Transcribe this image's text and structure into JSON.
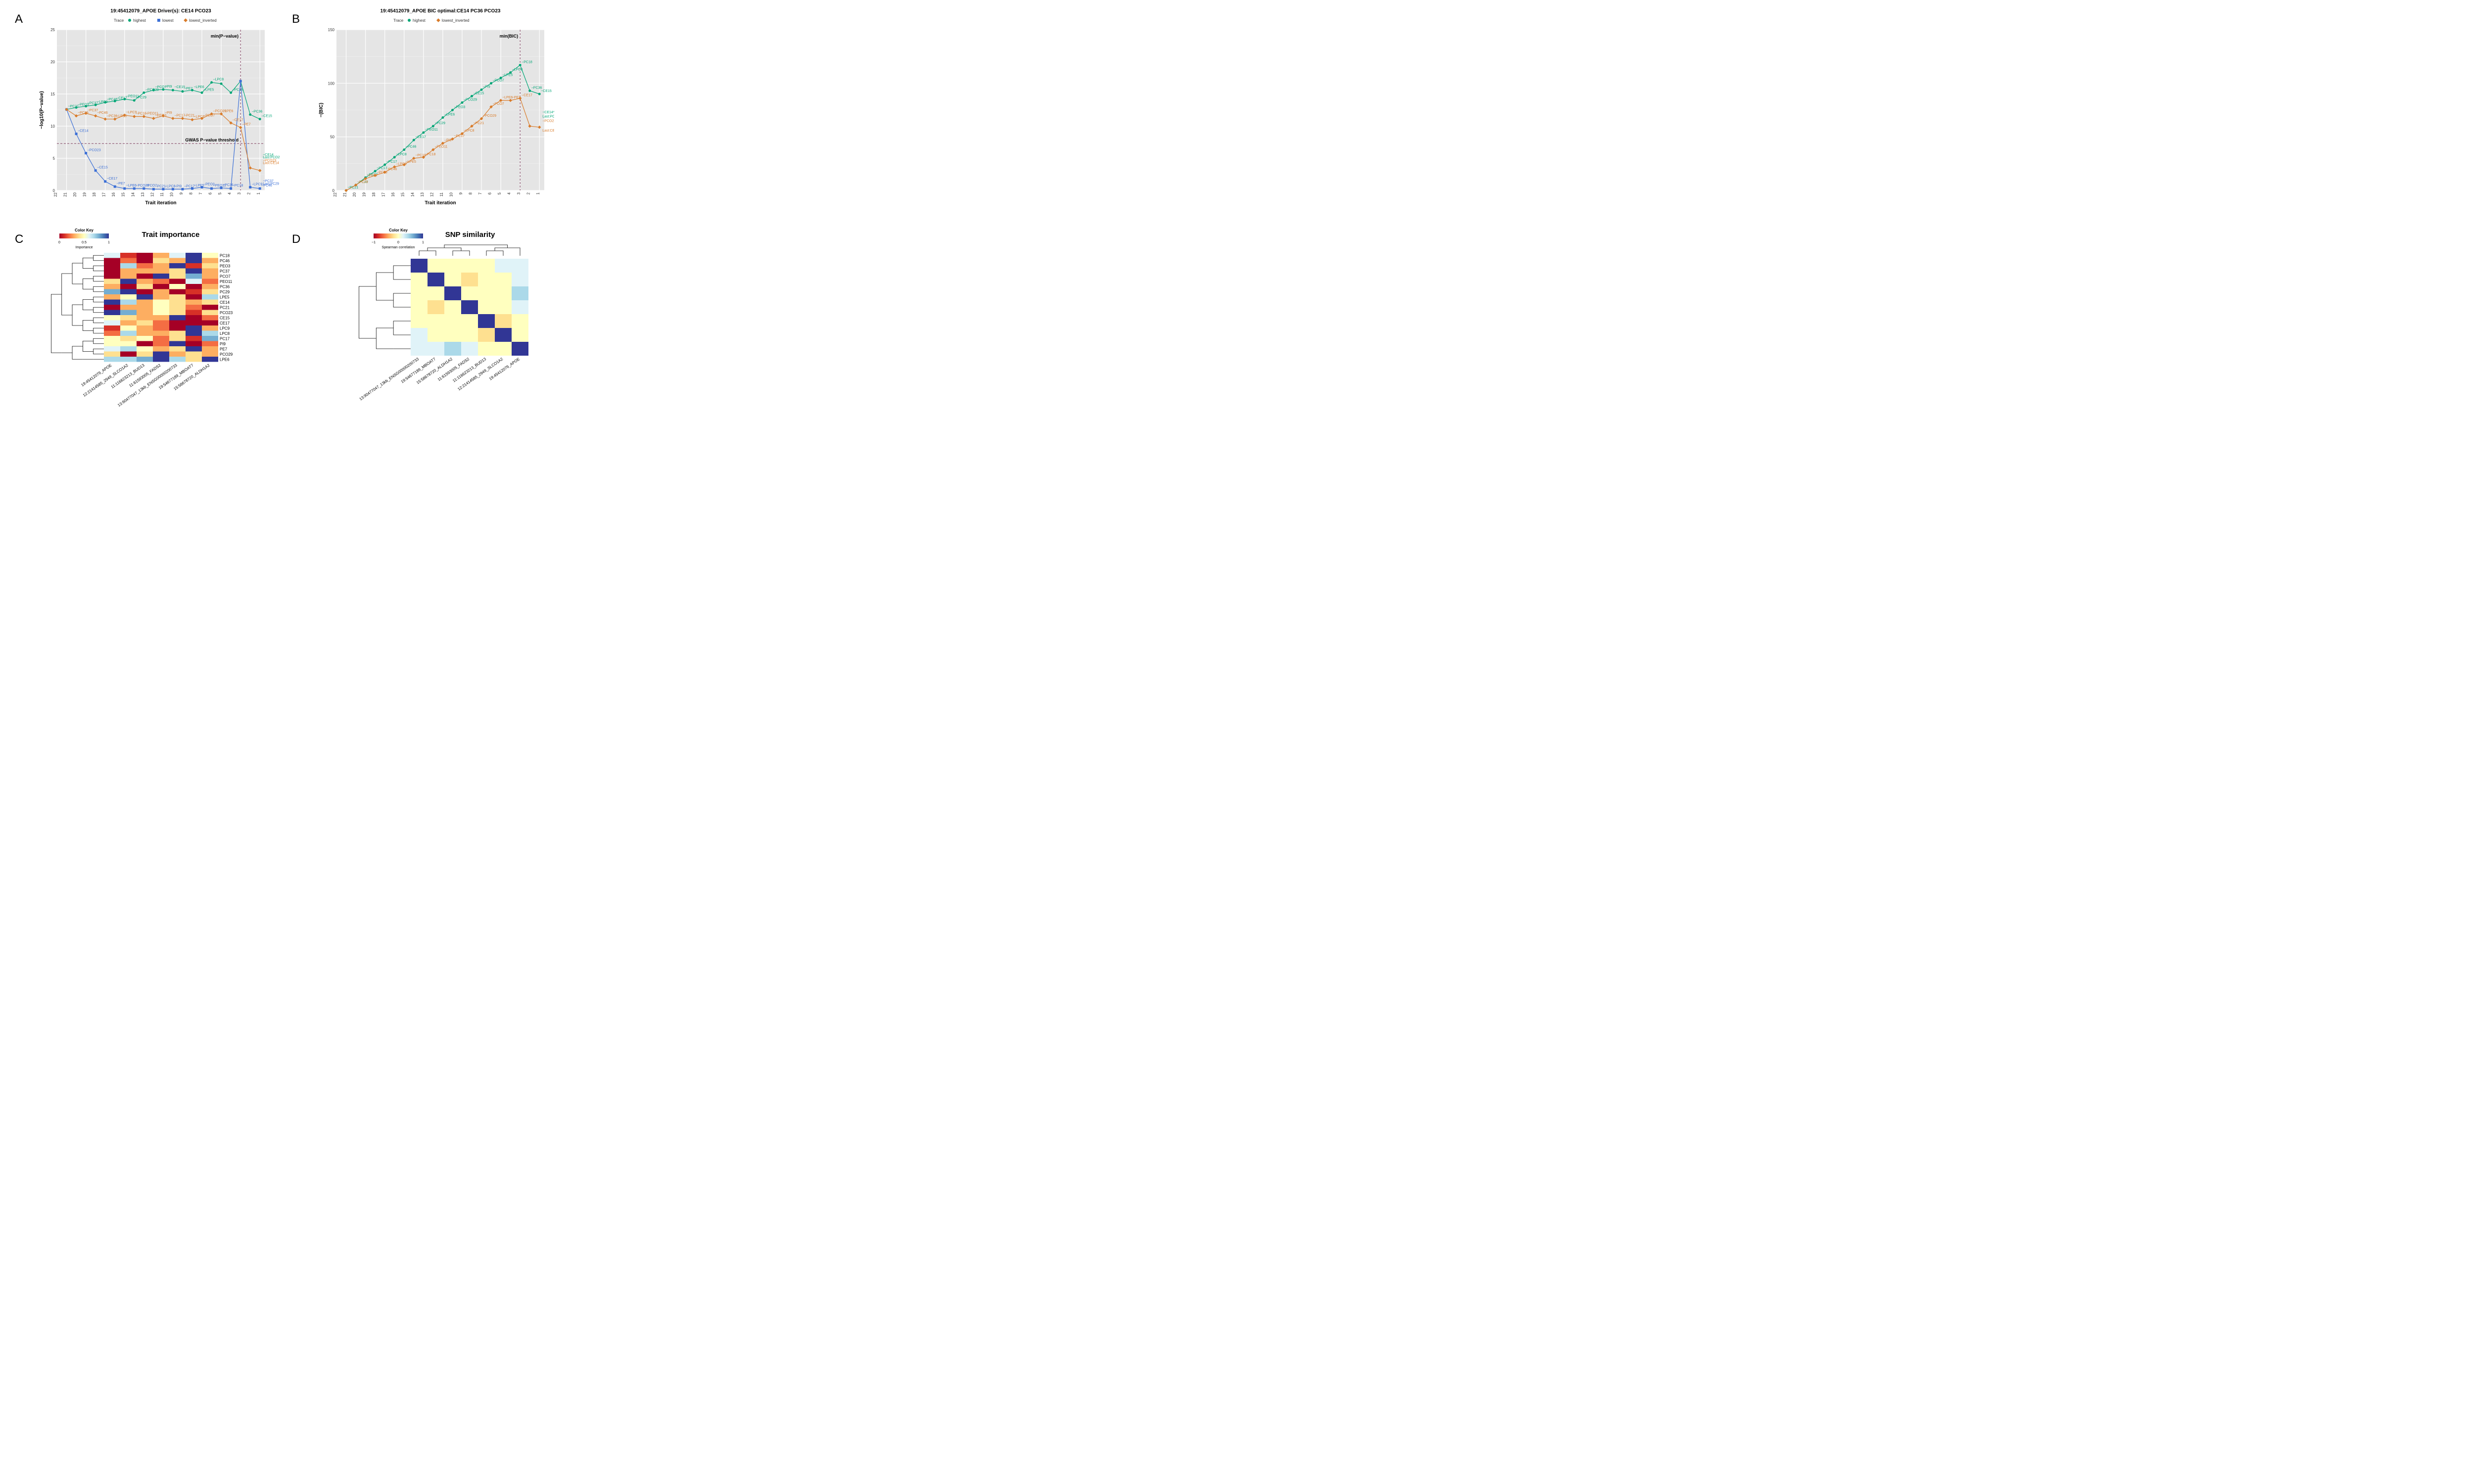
{
  "colors": {
    "highest": "#00a676",
    "lowest": "#3b6fd6",
    "lowest_inv": "#d97b29",
    "dash": "#7d3c5c",
    "plotbg": "#e5e5e5",
    "gridmaj": "#ffffff",
    "gridmin": "#f3f3f3",
    "heat": [
      "#a50026",
      "#d73027",
      "#f46d43",
      "#fdae61",
      "#fee090",
      "#ffffbf",
      "#e0f3f8",
      "#abd9e9",
      "#74add1",
      "#4575b4",
      "#313695"
    ]
  },
  "panelA": {
    "label": "A",
    "title": "19:45412079_APOE Driver(s): CE14 PCO23",
    "legend_title": "Trace",
    "legend": [
      "highest",
      "lowest",
      "lowest_inverted"
    ],
    "xlabel": "Trait iteration",
    "ylabel": "−log10(P−value)",
    "xlim": [
      22,
      0.5
    ],
    "ylim": [
      0,
      25
    ],
    "ytick_step": 5,
    "xticks": [
      22,
      21,
      20,
      19,
      18,
      17,
      16,
      15,
      14,
      13,
      12,
      11,
      10,
      9,
      8,
      7,
      6,
      5,
      4,
      3,
      2,
      1
    ],
    "vline_x": 3,
    "vline_label": "min(P−value)",
    "hline_y": 7.3,
    "hline_label": "GWAS P−value threshold",
    "traces": {
      "highest": {
        "color": "#00a676",
        "shape": "circle",
        "pts": [
          [
            21,
            12.6,
            "−PC21"
          ],
          [
            20,
            12.9,
            "−PEO3"
          ],
          [
            19,
            13.1,
            "−PC37"
          ],
          [
            18,
            13.3,
            "−LPC9"
          ],
          [
            17,
            13.7,
            "−PC46"
          ],
          [
            16,
            13.9,
            "−CE17"
          ],
          [
            15,
            14.2,
            "−PEO11"
          ],
          [
            14,
            14.0,
            "−PC29"
          ],
          [
            13,
            15.2,
            "−PCO29"
          ],
          [
            12,
            15.6,
            "−PCO7"
          ],
          [
            11,
            15.7,
            "−PI9"
          ],
          [
            10,
            15.6,
            "−CE15"
          ],
          [
            9,
            15.4,
            "−PE7"
          ],
          [
            8,
            15.6,
            "−LPE6"
          ],
          [
            7,
            15.2,
            "−LPE5"
          ],
          [
            6,
            16.8,
            "−LPC8"
          ],
          [
            5,
            16.6,
            ""
          ],
          [
            4,
            15.2,
            "−PC18"
          ],
          [
            3,
            17.0,
            ""
          ],
          [
            2,
            11.8,
            "−PC36"
          ],
          [
            1,
            11.1,
            "−CE15"
          ]
        ],
        "end_labels": [
          [
            1,
            5.4,
            "−CE14"
          ],
          [
            1,
            5.0,
            "Last:PCO23"
          ]
        ]
      },
      "lowest": {
        "color": "#3b6fd6",
        "shape": "square",
        "pts": [
          [
            21,
            12.6,
            ""
          ],
          [
            20,
            8.8,
            "−CE14"
          ],
          [
            19,
            5.8,
            "−PCO23"
          ],
          [
            18,
            3.1,
            "−CE15"
          ],
          [
            17,
            1.4,
            "−CE17"
          ],
          [
            16,
            0.6,
            "−PE7"
          ],
          [
            15,
            0.3,
            "−LPE6"
          ],
          [
            14,
            0.3,
            "−PCO29"
          ],
          [
            13,
            0.3,
            "−PCO7"
          ],
          [
            12,
            0.2,
            "−PC21"
          ],
          [
            11,
            0.2,
            "−LPC8"
          ],
          [
            10,
            0.2,
            "−PI9"
          ],
          [
            9,
            0.2,
            "−PC17"
          ],
          [
            8,
            0.3,
            "−LPE5"
          ],
          [
            7,
            0.5,
            "−PEO3"
          ],
          [
            6,
            0.3,
            "−PEO11"
          ],
          [
            5,
            0.4,
            "−PC36"
          ],
          [
            4,
            0.3,
            "−PC18"
          ],
          [
            3,
            17.0,
            ""
          ],
          [
            2,
            0.5,
            "−LPC9"
          ],
          [
            1,
            0.3,
            "−PC46"
          ]
        ],
        "end_labels": [
          [
            1,
            1.3,
            "−PC37"
          ],
          [
            1,
            0.9,
            "Last:PC29"
          ]
        ]
      },
      "lowest_inv": {
        "color": "#d97b29",
        "shape": "diamond",
        "pts": [
          [
            21,
            12.6,
            ""
          ],
          [
            20,
            11.6,
            "−PC29"
          ],
          [
            19,
            12.0,
            "−PC37"
          ],
          [
            18,
            11.6,
            "−PC46"
          ],
          [
            17,
            11.1,
            "−PC36"
          ],
          [
            16,
            11.1,
            "−LPE5"
          ],
          [
            15,
            11.7,
            "−LPC9"
          ],
          [
            14,
            11.5,
            "−PC18"
          ],
          [
            13,
            11.5,
            "−PEO11"
          ],
          [
            12,
            11.2,
            "−PEO3"
          ],
          [
            11,
            11.6,
            "−PI9"
          ],
          [
            10,
            11.2,
            "−PC17"
          ],
          [
            9,
            11.2,
            "−PC21"
          ],
          [
            8,
            11.0,
            "−LPC8"
          ],
          [
            7,
            11.2,
            "−PCO7"
          ],
          [
            6,
            11.9,
            "−PCO29"
          ],
          [
            5,
            11.9,
            "−LPE6"
          ],
          [
            4,
            10.5,
            "−CE17"
          ],
          [
            3,
            9.8,
            "−PE7"
          ],
          [
            2,
            3.5,
            ""
          ],
          [
            1,
            3.1,
            ""
          ]
        ],
        "end_labels": [
          [
            1,
            4.5,
            "−PCO23"
          ],
          [
            1,
            4.1,
            "Last:CE14"
          ]
        ]
      }
    }
  },
  "panelB": {
    "label": "B",
    "title": "19:45412079_APOE BIC optimal:CE14 PC36 PCO23",
    "legend_title": "Trace",
    "legend": [
      "highest",
      "lowest_inverted"
    ],
    "xlabel": "Trait iteration",
    "ylabel": "−(BIC)",
    "xlim": [
      22,
      0.5
    ],
    "ylim": [
      0,
      150
    ],
    "ytick_step": 50,
    "xticks": [
      22,
      21,
      20,
      19,
      18,
      17,
      16,
      15,
      14,
      13,
      12,
      11,
      10,
      9,
      8,
      7,
      6,
      5,
      4,
      3,
      2,
      1
    ],
    "vline_x": 3,
    "vline_label": "min(BIC)",
    "traces": {
      "highest": {
        "color": "#00a676",
        "shape": "circle",
        "pts": [
          [
            21,
            0,
            "−PC21"
          ],
          [
            20,
            5,
            "−PC37"
          ],
          [
            19,
            12,
            "−PC37"
          ],
          [
            18,
            18,
            "−PC17"
          ],
          [
            17,
            24,
            "−PC17"
          ],
          [
            16,
            31,
            "−LPC8"
          ],
          [
            15,
            38,
            "−PC46"
          ],
          [
            14,
            47,
            "−CE17"
          ],
          [
            13,
            54,
            "−PEO11"
          ],
          [
            12,
            60,
            "−PC29"
          ],
          [
            11,
            68,
            "−LPE6"
          ],
          [
            10,
            75,
            "−PEO3"
          ],
          [
            9,
            82,
            "−PCO29"
          ],
          [
            8,
            88,
            "−CE15"
          ],
          [
            7,
            94,
            "−PI9"
          ],
          [
            6,
            100,
            "−PCO7"
          ],
          [
            5,
            105,
            "−LPE5"
          ],
          [
            4,
            110,
            "−LPC8"
          ],
          [
            3,
            117,
            "−PC18"
          ],
          [
            2,
            93,
            "−PC36"
          ],
          [
            1,
            90,
            "−CE15"
          ]
        ],
        "end_labels": [
          [
            1,
            72,
            "−CE14*"
          ],
          [
            1,
            68,
            "Last:PCO23*"
          ]
        ]
      },
      "lowest_inv": {
        "color": "#d97b29",
        "shape": "diamond",
        "pts": [
          [
            21,
            0,
            ""
          ],
          [
            20,
            5,
            "−PC29"
          ],
          [
            19,
            11,
            "−PC37"
          ],
          [
            18,
            14,
            "−PC36"
          ],
          [
            17,
            17,
            "−PC46"
          ],
          [
            16,
            22,
            "−LPC9"
          ],
          [
            15,
            24,
            "−LPE5"
          ],
          [
            14,
            30,
            "−PC18"
          ],
          [
            13,
            31,
            "−PC18"
          ],
          [
            12,
            38,
            "−PEO11"
          ],
          [
            11,
            44,
            "−PI9"
          ],
          [
            10,
            48,
            "−PC17"
          ],
          [
            9,
            53,
            "−LPC8"
          ],
          [
            8,
            60,
            "−PC21"
          ],
          [
            7,
            67,
            "−PCO29"
          ],
          [
            6,
            78,
            "−PCO7"
          ],
          [
            5,
            84,
            "−LPE6"
          ],
          [
            4,
            84,
            "−PE7"
          ],
          [
            3,
            86,
            "−CE17"
          ],
          [
            2,
            60,
            ""
          ],
          [
            1,
            59,
            ""
          ]
        ],
        "end_labels": [
          [
            1,
            64,
            "−PCO23"
          ],
          [
            1,
            55,
            "Last:CE14*"
          ]
        ]
      }
    }
  },
  "panelC": {
    "label": "C",
    "title": "Trait importance",
    "key_title": "Color Key",
    "key_sub": "Importance",
    "key_ticks": [
      "0",
      "0.5",
      "1"
    ],
    "rows": [
      "PC18",
      "PC46",
      "PEO3",
      "PC37",
      "PCO7",
      "PEO11",
      "PC36",
      "PC29",
      "LPE5",
      "CE14",
      "PC21",
      "PCO23",
      "CE15",
      "CE17",
      "LPC9",
      "LPC8",
      "PC17",
      "PI9",
      "PE7",
      "PCO29",
      "LPE6"
    ],
    "cols": [
      "19:45412079_APOE",
      "12:21414585_2949_SLCO1A2",
      "11:116623213_BUD13",
      "11:61593005_FADS2",
      "13:90477047_13kb_ENSG00000200733",
      "19:54677189_MBOAT7",
      "15:58678720_ALDH1A2"
    ],
    "data": [
      [
        6,
        1,
        0,
        3,
        6,
        10,
        5
      ],
      [
        0,
        2,
        0,
        4,
        3,
        10,
        3
      ],
      [
        0,
        7,
        2,
        3,
        10,
        1,
        4
      ],
      [
        0,
        3,
        3,
        3,
        4,
        10,
        3
      ],
      [
        0,
        3,
        0,
        10,
        4,
        8,
        3
      ],
      [
        4,
        10,
        3,
        2,
        0,
        6,
        2
      ],
      [
        3,
        0,
        4,
        0,
        5,
        0,
        3
      ],
      [
        8,
        10,
        0,
        3,
        0,
        1,
        4
      ],
      [
        3,
        5,
        10,
        3,
        4,
        0,
        7
      ],
      [
        10,
        7,
        3,
        5,
        4,
        3,
        4
      ],
      [
        0,
        3,
        3,
        5,
        4,
        2,
        0
      ],
      [
        10,
        8,
        3,
        5,
        4,
        1,
        4
      ],
      [
        5,
        4,
        3,
        3,
        10,
        0,
        2
      ],
      [
        6,
        3,
        4,
        2,
        0,
        0,
        0
      ],
      [
        1,
        5,
        3,
        2,
        0,
        10,
        3
      ],
      [
        2,
        7,
        3,
        3,
        4,
        10,
        7
      ],
      [
        5,
        4,
        5,
        2,
        4,
        1,
        8
      ],
      [
        5,
        5,
        0,
        2,
        10,
        0,
        2
      ],
      [
        6,
        7,
        5,
        3,
        4,
        10,
        3
      ],
      [
        4,
        0,
        4,
        10,
        3,
        4,
        3
      ],
      [
        7,
        7,
        8,
        10,
        7,
        4,
        10
      ]
    ]
  },
  "panelD": {
    "label": "D",
    "title": "SNP similarity",
    "key_title": "Color Key",
    "key_sub": "Spearman correlation",
    "key_ticks": [
      "−1",
      "0",
      "1"
    ],
    "cols": [
      "19:45412079_APOE",
      "12:21414585_2949_SLCO1A2",
      "11:116623213_BUD13",
      "11:61593005_FADS2",
      "13:90477047_13kb_ENSG00000200733",
      "19:54677189_MBOAT7",
      "15:58678720_ALDH1A2"
    ],
    "col_order": [
      0,
      1,
      2,
      3,
      4,
      5,
      6
    ],
    "data": [
      [
        10,
        5,
        5,
        6,
        6,
        6,
        7
      ],
      [
        5,
        10,
        4,
        5,
        6,
        5,
        5
      ],
      [
        5,
        4,
        10,
        5,
        5,
        5,
        5
      ],
      [
        6,
        5,
        5,
        10,
        5,
        4,
        5
      ],
      [
        6,
        6,
        5,
        5,
        10,
        5,
        5
      ],
      [
        6,
        5,
        5,
        4,
        5,
        10,
        5
      ],
      [
        7,
        5,
        5,
        5,
        5,
        5,
        10
      ]
    ],
    "disp_order": [
      4,
      5,
      6,
      3,
      2,
      1,
      0
    ]
  }
}
